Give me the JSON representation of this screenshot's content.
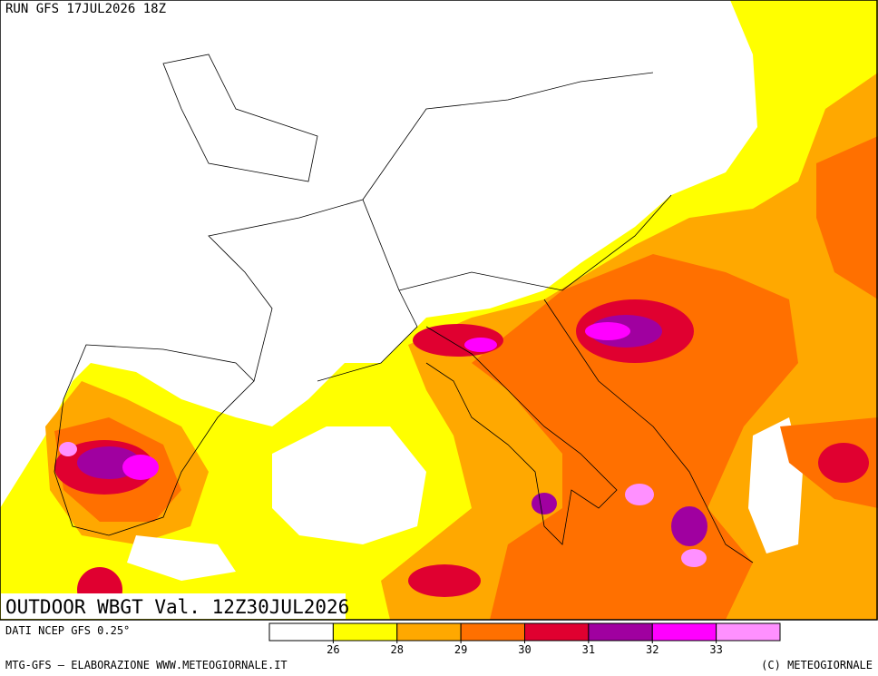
{
  "header": {
    "run": "RUN GFS 17JUL2026 18Z"
  },
  "map": {
    "title": "OUTDOOR WBGT Val. 12Z30JUL2026"
  },
  "legend": {
    "source": "DATI NCEP GFS 0.25°",
    "colors": [
      "#ffffff",
      "#ffff00",
      "#ffa800",
      "#ff7000",
      "#e00030",
      "#a000a0",
      "#ff00ff",
      "#ff90ff"
    ],
    "ticks": [
      26,
      28,
      29,
      30,
      31,
      32,
      33
    ]
  },
  "footer": {
    "left": "MTG-GFS – ELABORAZIONE WWW.METEOGIORNALE.IT",
    "right": "(C) METEOGIORNALE"
  }
}
